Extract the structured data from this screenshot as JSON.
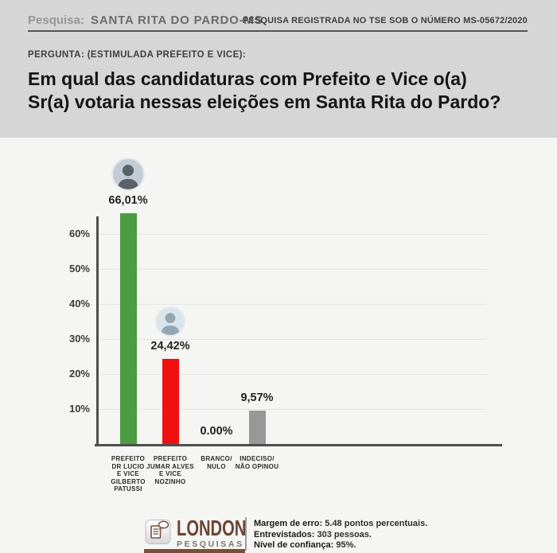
{
  "header": {
    "label": "Pesquisa:",
    "title": "SANTA RITA DO PARDO-MS",
    "registration": "PESQUISA REGISTRADA NO TSE SOB O NÚMERO MS-05672/2020"
  },
  "question": {
    "kicker": "PERGUNTA: (ESTIMULADA PREFEITO E VICE):",
    "line1": "Em qual das candidaturas com Prefeito e Vice o(a)",
    "line2": "Sr(a) votaria nessas eleições em Santa Rita do Pardo?"
  },
  "chart_data": {
    "type": "bar",
    "title": "Em qual das candidaturas com Prefeito e Vice o(a) Sr(a) votaria nessas eleições em Santa Rita do Pardo?",
    "categories": [
      "PREFEITO DR LUCIO E VICE GILBERTO PATUSSI",
      "PREFEITO JUMAR ALVES E VICE NOZINHO",
      "BRANCO/NULO",
      "INDECISO/NÃO OPINOU"
    ],
    "category_lines": [
      [
        "PREFEITO",
        "DR LUCIO",
        "E VICE",
        "GILBERTO",
        "PATUSSI"
      ],
      [
        "PREFEITO",
        "JUMAR ALVES",
        "E VICE",
        "NOZINHO"
      ],
      [
        "BRANCO/",
        "NULO"
      ],
      [
        "INDECISO/",
        "NÃO OPINOU"
      ]
    ],
    "values": [
      66.01,
      24.42,
      0.0,
      9.57
    ],
    "value_labels": [
      "66,01%",
      "24,42%",
      "0.00%",
      "9,57%"
    ],
    "bar_colors": [
      "#4c9c42",
      "#ef1111",
      null,
      "#989898"
    ],
    "yticks": [
      10,
      20,
      30,
      40,
      50,
      60
    ],
    "ytick_labels": [
      "10%",
      "20%",
      "30%",
      "40%",
      "50%",
      "60%"
    ],
    "ylim": [
      0,
      67
    ],
    "grid": true,
    "legend": "none",
    "avatars": [
      {
        "present": true,
        "bg": "#c3ccd5",
        "fg": "#59616a",
        "size": 38
      },
      {
        "present": true,
        "bg": "#d9e5ec",
        "fg": "#93a6b2",
        "size": 34
      },
      {
        "present": false
      },
      {
        "present": false
      }
    ]
  },
  "footer": {
    "logo": {
      "name": "LONDON",
      "subtitle": "PESQUISAS"
    },
    "stats": [
      {
        "label": "Margem de erro:",
        "value": "5.48 pontos percentuais."
      },
      {
        "label": "Entrevistados:",
        "value": "303 pessoas."
      },
      {
        "label": "Nível de confiança:",
        "value": "95%."
      }
    ]
  },
  "colors": {
    "page_bg": "#d6d6d6",
    "panel_bg": "#f5f5f4",
    "green": "#4c9c42",
    "red": "#ef1111",
    "gray": "#989898",
    "logo_brown": "#6b4533",
    "underline": "#555555"
  }
}
